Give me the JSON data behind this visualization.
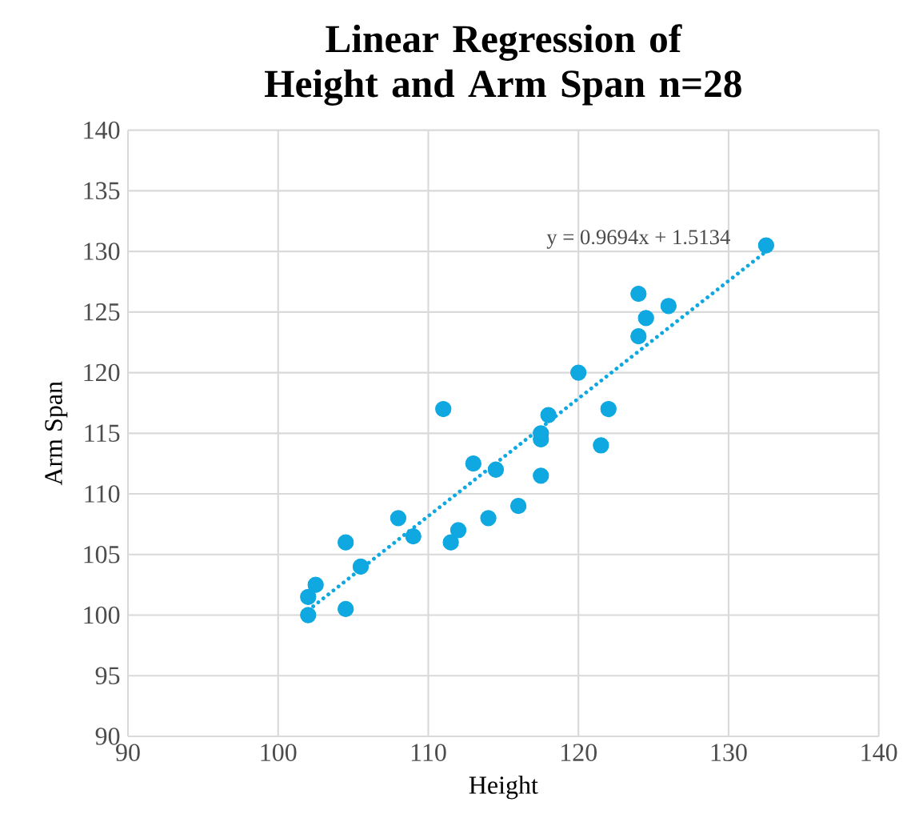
{
  "chart_data": {
    "type": "scatter",
    "title": "Linear Regression of Height and Arm Span  n=28",
    "xlabel": "Height",
    "ylabel": "Arm Span",
    "xlim": [
      90,
      140
    ],
    "xticks": [
      90,
      100,
      110,
      120,
      130,
      140
    ],
    "ylim": [
      90,
      140
    ],
    "yticks": [
      90,
      95,
      100,
      105,
      110,
      115,
      120,
      125,
      130,
      135,
      140
    ],
    "grid": true,
    "series": [
      {
        "marker": "circle",
        "color": "#0fa8e0",
        "x": [
          102,
          102,
          102.5,
          104.5,
          104.5,
          105.5,
          108,
          109,
          111,
          111.5,
          112,
          113,
          114,
          114.5,
          116,
          117.5,
          117.5,
          117.5,
          118,
          120,
          121.5,
          122,
          124,
          124,
          124.5,
          126,
          132.5
        ],
        "values": [
          100,
          101.5,
          102.5,
          100.5,
          106,
          104,
          108,
          106.5,
          117,
          106,
          107,
          112.5,
          108,
          112,
          109,
          111.5,
          114.5,
          115,
          116.5,
          120,
          114,
          117,
          123,
          126.5,
          124.5,
          125.5,
          130.5
        ]
      },
      {
        "type": "line",
        "color": "#0fa8e0",
        "line_style": "dotted",
        "marker": "none",
        "x": [
          102,
          132.5
        ],
        "values": [
          100.4,
          130.0
        ]
      }
    ],
    "annotations": [
      "y = 0.9694x + 1.5134"
    ]
  }
}
